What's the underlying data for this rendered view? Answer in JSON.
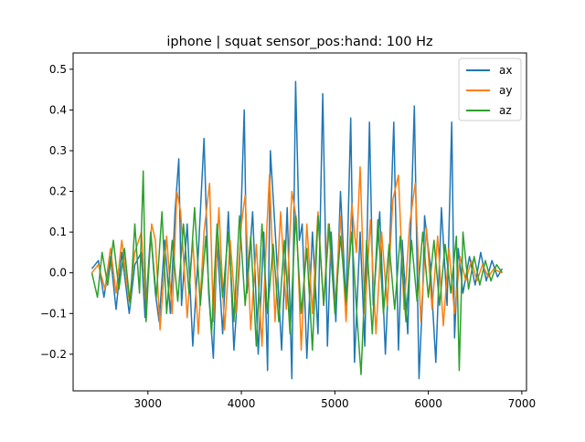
{
  "chart_data": {
    "type": "line",
    "title": "iphone | squat sensor_pos:hand: 100 Hz",
    "xlabel": "",
    "ylabel": "",
    "xlim": [
      2200,
      7050
    ],
    "ylim": [
      -0.29,
      0.54
    ],
    "xticks": [
      3000,
      4000,
      5000,
      6000,
      7000
    ],
    "yticks": [
      -0.2,
      -0.1,
      0.0,
      0.1,
      0.2,
      0.3,
      0.4,
      0.5
    ],
    "xtick_labels": [
      "3000",
      "4000",
      "5000",
      "6000",
      "7000"
    ],
    "ytick_labels": [
      "−0.2",
      "−0.1",
      "0.0",
      "0.1",
      "0.2",
      "0.3",
      "0.4",
      "0.5"
    ],
    "grid": false,
    "legend": {
      "position": "top-right",
      "entries": [
        "ax",
        "ay",
        "az"
      ]
    },
    "series": [
      {
        "name": "ax",
        "color": "#1f77b4",
        "x": [
          2400,
          2470,
          2530,
          2600,
          2660,
          2720,
          2800,
          2860,
          2930,
          2970,
          3030,
          3080,
          3120,
          3180,
          3240,
          3290,
          3330,
          3360,
          3420,
          3480,
          3540,
          3600,
          3650,
          3700,
          3740,
          3800,
          3860,
          3920,
          3980,
          4030,
          4060,
          4120,
          4180,
          4240,
          4280,
          4310,
          4370,
          4430,
          4490,
          4540,
          4580,
          4620,
          4650,
          4700,
          4760,
          4820,
          4870,
          4920,
          4960,
          5010,
          5060,
          5120,
          5170,
          5210,
          5270,
          5320,
          5370,
          5410,
          5480,
          5540,
          5580,
          5630,
          5680,
          5720,
          5780,
          5850,
          5900,
          5940,
          5960,
          6020,
          6080,
          6140,
          6200,
          6250,
          6280,
          6320,
          6370,
          6440,
          6500,
          6560,
          6620,
          6680,
          6740,
          6790
        ],
        "y": [
          0.01,
          0.03,
          -0.06,
          0.04,
          -0.09,
          0.05,
          -0.1,
          0.02,
          0.05,
          -0.11,
          0.1,
          -0.05,
          -0.12,
          0.08,
          -0.1,
          0.15,
          0.28,
          -0.08,
          0.12,
          -0.18,
          0.05,
          0.33,
          -0.05,
          -0.21,
          0.08,
          -0.15,
          0.15,
          -0.19,
          0.02,
          0.4,
          -0.05,
          0.15,
          -0.2,
          0.1,
          -0.24,
          0.3,
          0.07,
          -0.19,
          0.16,
          -0.26,
          0.47,
          0.08,
          0.12,
          -0.21,
          0.1,
          -0.15,
          0.44,
          -0.18,
          0.1,
          -0.12,
          0.2,
          -0.08,
          0.38,
          -0.22,
          0.1,
          -0.18,
          0.37,
          -0.08,
          0.15,
          -0.2,
          0.02,
          0.37,
          -0.19,
          0.08,
          -0.15,
          0.41,
          -0.26,
          -0.05,
          0.14,
          0.02,
          -0.22,
          0.16,
          -0.08,
          0.37,
          -0.16,
          0.06,
          -0.05,
          0.04,
          -0.03,
          0.05,
          -0.02,
          0.03,
          -0.01,
          0.01
        ]
      },
      {
        "name": "ay",
        "color": "#ff7f0e",
        "x": [
          2400,
          2470,
          2540,
          2600,
          2660,
          2720,
          2800,
          2860,
          2930,
          2980,
          3040,
          3080,
          3130,
          3200,
          3260,
          3310,
          3350,
          3420,
          3480,
          3540,
          3600,
          3660,
          3700,
          3760,
          3820,
          3880,
          3940,
          4000,
          4040,
          4100,
          4160,
          4220,
          4270,
          4300,
          4360,
          4420,
          4480,
          4540,
          4590,
          4640,
          4700,
          4760,
          4820,
          4880,
          4930,
          5000,
          5060,
          5120,
          5180,
          5230,
          5270,
          5320,
          5380,
          5440,
          5500,
          5560,
          5620,
          5680,
          5740,
          5800,
          5860,
          5920,
          5980,
          6040,
          6100,
          6160,
          6220,
          6280,
          6340,
          6400,
          6460,
          6520,
          6580,
          6640,
          6700,
          6780
        ],
        "y": [
          0.0,
          0.02,
          -0.04,
          0.06,
          -0.05,
          0.08,
          -0.07,
          0.05,
          0.1,
          -0.09,
          0.12,
          0.08,
          -0.14,
          0.09,
          -0.1,
          0.2,
          0.15,
          -0.11,
          0.08,
          -0.15,
          0.1,
          0.22,
          -0.12,
          0.16,
          -0.14,
          0.08,
          -0.1,
          0.12,
          0.19,
          -0.14,
          0.07,
          -0.18,
          0.1,
          0.24,
          -0.12,
          0.15,
          -0.09,
          0.2,
          0.13,
          -0.19,
          0.12,
          -0.1,
          0.15,
          -0.08,
          0.12,
          -0.09,
          0.14,
          -0.12,
          0.17,
          0.05,
          0.26,
          -0.1,
          0.13,
          -0.15,
          0.1,
          -0.08,
          0.18,
          0.24,
          -0.09,
          0.12,
          0.22,
          -0.12,
          0.11,
          -0.09,
          0.09,
          -0.13,
          0.06,
          -0.1,
          0.04,
          -0.02,
          0.03,
          -0.02,
          0.02,
          -0.01,
          0.01,
          0.0
        ]
      },
      {
        "name": "az",
        "color": "#2ca02c",
        "x": [
          2400,
          2460,
          2510,
          2570,
          2630,
          2690,
          2750,
          2810,
          2860,
          2910,
          2950,
          2980,
          3030,
          3090,
          3150,
          3200,
          3260,
          3320,
          3380,
          3440,
          3500,
          3560,
          3620,
          3680,
          3740,
          3800,
          3860,
          3920,
          3980,
          4040,
          4100,
          4160,
          4220,
          4280,
          4340,
          4400,
          4460,
          4520,
          4580,
          4640,
          4700,
          4760,
          4820,
          4880,
          4940,
          5000,
          5060,
          5120,
          5180,
          5240,
          5280,
          5340,
          5400,
          5460,
          5520,
          5580,
          5640,
          5700,
          5760,
          5820,
          5880,
          5940,
          6000,
          6060,
          6120,
          6180,
          6240,
          6300,
          6330,
          6370,
          6430,
          6490,
          6550,
          6610,
          6670,
          6730,
          6790
        ],
        "y": [
          0.0,
          -0.06,
          0.05,
          -0.03,
          0.08,
          -0.04,
          0.06,
          -0.08,
          0.12,
          -0.05,
          0.25,
          -0.12,
          0.1,
          -0.06,
          0.15,
          -0.1,
          0.08,
          -0.07,
          0.12,
          -0.05,
          0.16,
          -0.08,
          0.09,
          -0.15,
          0.12,
          -0.06,
          0.1,
          -0.12,
          0.14,
          -0.08,
          0.09,
          -0.18,
          0.12,
          -0.1,
          0.07,
          -0.12,
          0.08,
          -0.15,
          0.14,
          -0.1,
          0.06,
          -0.19,
          0.14,
          -0.08,
          0.12,
          -0.1,
          0.09,
          -0.07,
          0.1,
          -0.12,
          -0.25,
          0.08,
          -0.15,
          0.13,
          -0.1,
          0.07,
          -0.09,
          0.09,
          -0.12,
          0.08,
          -0.07,
          0.1,
          -0.06,
          0.08,
          -0.08,
          0.07,
          -0.05,
          0.09,
          -0.24,
          0.1,
          -0.04,
          0.04,
          -0.03,
          0.03,
          -0.02,
          0.02,
          0.0
        ]
      }
    ]
  }
}
